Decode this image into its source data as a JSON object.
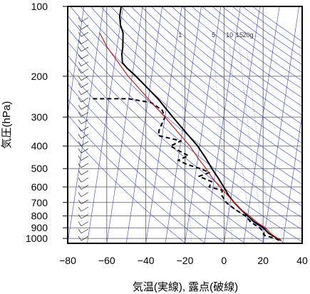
{
  "chart_data": {
    "type": "line",
    "subtype": "skew-t log-p sounding",
    "xlabel": "気温(実線), 露点(破線)",
    "ylabel": "気圧(hPa)",
    "xlim": [
      -80,
      40
    ],
    "ylim_hPa": [
      1050,
      100
    ],
    "y_scale": "log",
    "x_ticks": [
      "−80",
      "−60",
      "−40",
      "−20",
      "0",
      "20",
      "40"
    ],
    "x_tick_values": [
      -80,
      -60,
      -40,
      -20,
      0,
      20,
      40
    ],
    "y_ticks": [
      "100",
      "200",
      "300",
      "400",
      "500",
      "600",
      "700",
      "800",
      "900",
      "1000"
    ],
    "y_tick_values": [
      100,
      200,
      300,
      400,
      500,
      600,
      700,
      800,
      900,
      1000
    ],
    "grid": true,
    "mixing_ratio_labels": [
      "1",
      "5",
      "10",
      "15",
      "20g"
    ],
    "mixing_ratio_values": [
      1,
      5,
      10,
      15,
      20
    ],
    "skew_deg_per_decade": 18,
    "series": [
      {
        "kind": "temperature",
        "style": "solid",
        "color": "#000000",
        "points": [
          [
            1020,
            29
          ],
          [
            1000,
            27
          ],
          [
            950,
            22
          ],
          [
            900,
            19
          ],
          [
            850,
            14
          ],
          [
            800,
            10
          ],
          [
            750,
            6
          ],
          [
            700,
            2
          ],
          [
            650,
            -1.5
          ],
          [
            600,
            -4.5
          ],
          [
            550,
            -8
          ],
          [
            500,
            -12
          ],
          [
            450,
            -16
          ],
          [
            400,
            -21
          ],
          [
            350,
            -28
          ],
          [
            300,
            -36
          ],
          [
            250,
            -45
          ],
          [
            200,
            -58
          ],
          [
            185,
            -63
          ],
          [
            175,
            -66
          ],
          [
            160,
            -67
          ],
          [
            150,
            -67
          ],
          [
            130,
            -68
          ],
          [
            120,
            -70
          ],
          [
            110,
            -71
          ],
          [
            100,
            -71
          ]
        ]
      },
      {
        "kind": "dewpoint",
        "style": "dashed",
        "color": "#000000",
        "points": [
          [
            1020,
            28
          ],
          [
            1000,
            26
          ],
          [
            970,
            20
          ],
          [
            930,
            19
          ],
          [
            900,
            17
          ],
          [
            850,
            12
          ],
          [
            800,
            9
          ],
          [
            750,
            3
          ],
          [
            700,
            -2
          ],
          [
            650,
            -5
          ],
          [
            620,
            -5
          ],
          [
            600,
            -12
          ],
          [
            570,
            -11
          ],
          [
            540,
            -18
          ],
          [
            520,
            -13
          ],
          [
            500,
            -18
          ],
          [
            480,
            -25
          ],
          [
            460,
            -30
          ],
          [
            440,
            -25
          ],
          [
            420,
            -30
          ],
          [
            400,
            -35
          ],
          [
            380,
            -30
          ],
          [
            360,
            -42
          ],
          [
            340,
            -42
          ],
          [
            300,
            -40
          ],
          [
            280,
            -42
          ],
          [
            260,
            -48
          ],
          [
            250,
            -60
          ],
          [
            250,
            -80
          ]
        ]
      },
      {
        "kind": "parcel",
        "style": "solid",
        "color": "#d11a1a",
        "points": [
          [
            1020,
            29
          ],
          [
            1000,
            27
          ],
          [
            950,
            23
          ],
          [
            900,
            20
          ],
          [
            850,
            15
          ],
          [
            800,
            11
          ],
          [
            750,
            6
          ],
          [
            700,
            2
          ],
          [
            650,
            -2
          ],
          [
            600,
            -6.5
          ],
          [
            550,
            -11
          ],
          [
            500,
            -15
          ],
          [
            450,
            -20
          ],
          [
            400,
            -25
          ],
          [
            350,
            -32
          ],
          [
            300,
            -40
          ],
          [
            250,
            -50
          ],
          [
            200,
            -62
          ],
          [
            150,
            -75
          ],
          [
            130,
            -80
          ]
        ]
      }
    ],
    "wind_barbs": "left column"
  }
}
